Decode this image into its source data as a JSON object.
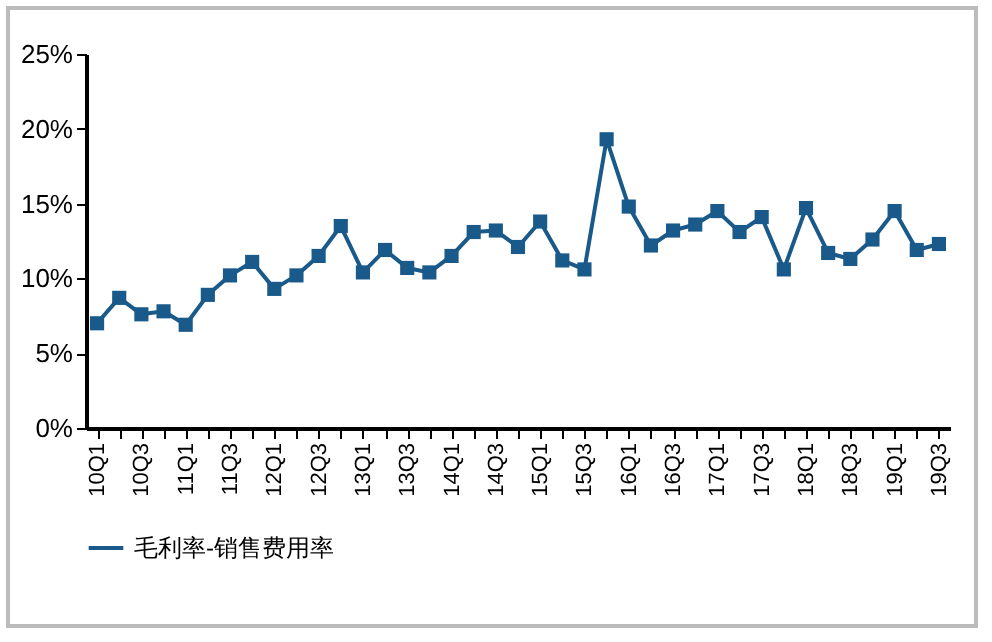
{
  "chart_data": {
    "type": "line",
    "categories": [
      "10Q1",
      null,
      "10Q3",
      null,
      "11Q1",
      null,
      "11Q3",
      null,
      "12Q1",
      null,
      "12Q3",
      null,
      "13Q1",
      null,
      "13Q3",
      null,
      "14Q1",
      null,
      "14Q3",
      null,
      "15Q1",
      null,
      "15Q3",
      null,
      "16Q1",
      null,
      "16Q3",
      null,
      "17Q1",
      null,
      "17Q3",
      null,
      "18Q1",
      null,
      "18Q3",
      null,
      "19Q1",
      null,
      "19Q3"
    ],
    "series": [
      {
        "name": "毛利率-销售费用率",
        "color": "#1a5a8a",
        "values": [
          7.0,
          8.7,
          7.6,
          7.8,
          6.9,
          8.9,
          10.2,
          11.1,
          9.3,
          10.2,
          11.5,
          13.5,
          10.4,
          11.9,
          10.7,
          10.4,
          11.5,
          13.1,
          13.2,
          12.1,
          13.8,
          11.2,
          10.6,
          19.3,
          14.8,
          12.2,
          13.2,
          13.6,
          14.5,
          13.1,
          14.1,
          10.6,
          14.7,
          11.7,
          11.3,
          12.6,
          14.5,
          11.9,
          12.3
        ]
      }
    ],
    "ylim": [
      0,
      25
    ],
    "yticks": [
      {
        "value": 0,
        "label": "0%"
      },
      {
        "value": 5,
        "label": "5%"
      },
      {
        "value": 10,
        "label": "10%"
      },
      {
        "value": 15,
        "label": "15%"
      },
      {
        "value": 20,
        "label": "20%"
      },
      {
        "value": 25,
        "label": "25%"
      }
    ],
    "grid": false,
    "legend": "bottom",
    "marker": "square",
    "line_style": "solid"
  }
}
